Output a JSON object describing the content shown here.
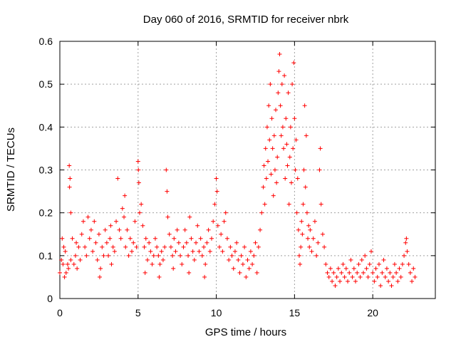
{
  "chart_data": {
    "type": "scatter",
    "title": "Day 060 of 2016, SRMTID for receiver nbrk",
    "xlabel": "GPS time / hours",
    "ylabel": "SRMTID / TECUs",
    "xlim": [
      0,
      24
    ],
    "ylim": [
      0,
      0.6
    ],
    "xticks": [
      0,
      5,
      10,
      15,
      20
    ],
    "xtick_labels": [
      "0",
      "5",
      "10",
      "15",
      "20"
    ],
    "yticks": [
      0,
      0.1,
      0.2,
      0.3,
      0.4,
      0.5,
      0.6
    ],
    "ytick_labels": [
      "0",
      "0.1",
      "0.2",
      "0.3",
      "0.4",
      "0.5",
      "0.6"
    ],
    "grid": true,
    "marker": "+",
    "color": "#ff0000",
    "series": [
      {
        "name": "SRMTID",
        "points": [
          [
            0.0,
            0.06
          ],
          [
            0.1,
            0.09
          ],
          [
            0.15,
            0.14
          ],
          [
            0.2,
            0.08
          ],
          [
            0.3,
            0.05
          ],
          [
            0.35,
            0.11
          ],
          [
            0.4,
            0.06
          ],
          [
            0.5,
            0.08
          ],
          [
            0.55,
            0.07
          ],
          [
            0.6,
            0.31
          ],
          [
            0.62,
            0.26
          ],
          [
            0.65,
            0.28
          ],
          [
            0.7,
            0.2
          ],
          [
            0.7,
            0.09
          ],
          [
            0.8,
            0.14
          ],
          [
            0.9,
            0.08
          ],
          [
            1.0,
            0.1
          ],
          [
            1.1,
            0.07
          ],
          [
            1.2,
            0.12
          ],
          [
            1.3,
            0.09
          ],
          [
            1.4,
            0.15
          ],
          [
            1.5,
            0.18
          ],
          [
            1.6,
            0.12
          ],
          [
            1.7,
            0.1
          ],
          [
            1.8,
            0.19
          ],
          [
            1.9,
            0.14
          ],
          [
            2.0,
            0.16
          ],
          [
            2.1,
            0.11
          ],
          [
            2.2,
            0.18
          ],
          [
            2.3,
            0.13
          ],
          [
            2.4,
            0.09
          ],
          [
            2.5,
            0.15
          ],
          [
            2.6,
            0.07
          ],
          [
            2.7,
            0.12
          ],
          [
            2.8,
            0.1
          ],
          [
            2.9,
            0.16
          ],
          [
            3.0,
            0.13
          ],
          [
            3.1,
            0.1
          ],
          [
            3.2,
            0.14
          ],
          [
            3.3,
            0.08
          ],
          [
            3.4,
            0.12
          ],
          [
            3.5,
            0.11
          ],
          [
            3.6,
            0.18
          ],
          [
            3.7,
            0.28
          ],
          [
            3.8,
            0.16
          ],
          [
            3.9,
            0.14
          ],
          [
            4.0,
            0.21
          ],
          [
            4.1,
            0.19
          ],
          [
            4.2,
            0.12
          ],
          [
            4.3,
            0.16
          ],
          [
            4.4,
            0.1
          ],
          [
            4.5,
            0.14
          ],
          [
            4.6,
            0.11
          ],
          [
            4.7,
            0.13
          ],
          [
            4.8,
            0.18
          ],
          [
            4.9,
            0.12
          ],
          [
            5.0,
            0.32
          ],
          [
            5.02,
            0.3
          ],
          [
            5.05,
            0.27
          ],
          [
            5.1,
            0.2
          ],
          [
            5.2,
            0.22
          ],
          [
            5.3,
            0.17
          ],
          [
            5.4,
            0.12
          ],
          [
            5.5,
            0.14
          ],
          [
            5.6,
            0.09
          ],
          [
            5.7,
            0.13
          ],
          [
            5.8,
            0.11
          ],
          [
            5.9,
            0.08
          ],
          [
            6.0,
            0.1
          ],
          [
            6.1,
            0.14
          ],
          [
            6.2,
            0.12
          ],
          [
            6.3,
            0.1
          ],
          [
            6.4,
            0.08
          ],
          [
            6.5,
            0.11
          ],
          [
            6.6,
            0.09
          ],
          [
            6.7,
            0.12
          ],
          [
            6.8,
            0.3
          ],
          [
            6.85,
            0.25
          ],
          [
            6.9,
            0.19
          ],
          [
            7.0,
            0.15
          ],
          [
            7.1,
            0.12
          ],
          [
            7.2,
            0.1
          ],
          [
            7.3,
            0.14
          ],
          [
            7.4,
            0.11
          ],
          [
            7.5,
            0.16
          ],
          [
            7.6,
            0.13
          ],
          [
            7.7,
            0.1
          ],
          [
            7.8,
            0.08
          ],
          [
            7.9,
            0.12
          ],
          [
            8.0,
            0.16
          ],
          [
            8.1,
            0.13
          ],
          [
            8.2,
            0.1
          ],
          [
            8.3,
            0.19
          ],
          [
            8.4,
            0.14
          ],
          [
            8.5,
            0.11
          ],
          [
            8.6,
            0.09
          ],
          [
            8.7,
            0.13
          ],
          [
            8.8,
            0.17
          ],
          [
            8.9,
            0.11
          ],
          [
            9.0,
            0.14
          ],
          [
            9.1,
            0.1
          ],
          [
            9.2,
            0.12
          ],
          [
            9.3,
            0.08
          ],
          [
            9.4,
            0.13
          ],
          [
            9.5,
            0.16
          ],
          [
            9.6,
            0.11
          ],
          [
            9.7,
            0.14
          ],
          [
            9.8,
            0.18
          ],
          [
            9.9,
            0.22
          ],
          [
            10.0,
            0.28
          ],
          [
            10.05,
            0.25
          ],
          [
            10.1,
            0.17
          ],
          [
            10.2,
            0.12
          ],
          [
            10.3,
            0.15
          ],
          [
            10.4,
            0.11
          ],
          [
            10.5,
            0.18
          ],
          [
            10.6,
            0.2
          ],
          [
            10.7,
            0.14
          ],
          [
            10.8,
            0.09
          ],
          [
            10.9,
            0.12
          ],
          [
            11.0,
            0.1
          ],
          [
            11.1,
            0.07
          ],
          [
            11.2,
            0.11
          ],
          [
            11.3,
            0.13
          ],
          [
            11.4,
            0.09
          ],
          [
            11.5,
            0.06
          ],
          [
            11.6,
            0.1
          ],
          [
            11.7,
            0.08
          ],
          [
            11.8,
            0.12
          ],
          [
            11.9,
            0.05
          ],
          [
            12.0,
            0.09
          ],
          [
            12.1,
            0.07
          ],
          [
            12.2,
            0.11
          ],
          [
            12.3,
            0.08
          ],
          [
            12.4,
            0.1
          ],
          [
            12.5,
            0.13
          ],
          [
            12.6,
            0.06
          ],
          [
            12.7,
            0.12
          ],
          [
            12.8,
            0.16
          ],
          [
            12.9,
            0.2
          ],
          [
            13.0,
            0.26
          ],
          [
            13.05,
            0.31
          ],
          [
            13.1,
            0.22
          ],
          [
            13.15,
            0.35
          ],
          [
            13.2,
            0.28
          ],
          [
            13.25,
            0.4
          ],
          [
            13.3,
            0.32
          ],
          [
            13.35,
            0.45
          ],
          [
            13.4,
            0.37
          ],
          [
            13.45,
            0.5
          ],
          [
            13.5,
            0.29
          ],
          [
            13.55,
            0.42
          ],
          [
            13.6,
            0.35
          ],
          [
            13.65,
            0.24
          ],
          [
            13.7,
            0.38
          ],
          [
            13.75,
            0.3
          ],
          [
            13.8,
            0.44
          ],
          [
            13.85,
            0.27
          ],
          [
            13.9,
            0.33
          ],
          [
            13.95,
            0.48
          ],
          [
            14.0,
            0.53
          ],
          [
            14.05,
            0.57
          ],
          [
            14.1,
            0.45
          ],
          [
            14.15,
            0.38
          ],
          [
            14.2,
            0.5
          ],
          [
            14.25,
            0.4
          ],
          [
            14.3,
            0.35
          ],
          [
            14.35,
            0.52
          ],
          [
            14.4,
            0.28
          ],
          [
            14.45,
            0.42
          ],
          [
            14.5,
            0.36
          ],
          [
            14.55,
            0.31
          ],
          [
            14.6,
            0.48
          ],
          [
            14.65,
            0.22
          ],
          [
            14.7,
            0.33
          ],
          [
            14.75,
            0.4
          ],
          [
            14.8,
            0.27
          ],
          [
            14.85,
            0.5
          ],
          [
            14.9,
            0.35
          ],
          [
            14.95,
            0.55
          ],
          [
            15.0,
            0.42
          ],
          [
            15.05,
            0.3
          ],
          [
            15.1,
            0.37
          ],
          [
            15.15,
            0.2
          ],
          [
            15.2,
            0.28
          ],
          [
            15.25,
            0.16
          ],
          [
            15.3,
            0.1
          ],
          [
            15.35,
            0.08
          ],
          [
            15.4,
            0.12
          ],
          [
            15.45,
            0.18
          ],
          [
            15.5,
            0.15
          ],
          [
            15.55,
            0.22
          ],
          [
            15.6,
            0.3
          ],
          [
            15.65,
            0.45
          ],
          [
            15.7,
            0.26
          ],
          [
            15.75,
            0.38
          ],
          [
            15.8,
            0.2
          ],
          [
            15.85,
            0.14
          ],
          [
            15.9,
            0.17
          ],
          [
            15.95,
            0.12
          ],
          [
            16.0,
            0.16
          ],
          [
            16.1,
            0.11
          ],
          [
            16.2,
            0.14
          ],
          [
            16.3,
            0.18
          ],
          [
            16.4,
            0.1
          ],
          [
            16.5,
            0.13
          ],
          [
            16.6,
            0.3
          ],
          [
            16.65,
            0.35
          ],
          [
            16.7,
            0.22
          ],
          [
            16.8,
            0.15
          ],
          [
            16.9,
            0.12
          ],
          [
            17.0,
            0.08
          ],
          [
            17.1,
            0.06
          ],
          [
            17.2,
            0.05
          ],
          [
            17.3,
            0.07
          ],
          [
            17.4,
            0.04
          ],
          [
            17.5,
            0.06
          ],
          [
            17.6,
            0.03
          ],
          [
            17.7,
            0.05
          ],
          [
            17.8,
            0.07
          ],
          [
            17.9,
            0.04
          ],
          [
            18.0,
            0.06
          ],
          [
            18.1,
            0.08
          ],
          [
            18.2,
            0.05
          ],
          [
            18.3,
            0.07
          ],
          [
            18.4,
            0.04
          ],
          [
            18.5,
            0.06
          ],
          [
            18.6,
            0.09
          ],
          [
            18.7,
            0.05
          ],
          [
            18.8,
            0.07
          ],
          [
            18.9,
            0.04
          ],
          [
            19.0,
            0.06
          ],
          [
            19.1,
            0.08
          ],
          [
            19.2,
            0.05
          ],
          [
            19.3,
            0.09
          ],
          [
            19.4,
            0.06
          ],
          [
            19.5,
            0.1
          ],
          [
            19.6,
            0.07
          ],
          [
            19.7,
            0.05
          ],
          [
            19.8,
            0.08
          ],
          [
            19.9,
            0.11
          ],
          [
            20.0,
            0.06
          ],
          [
            20.1,
            0.04
          ],
          [
            20.2,
            0.07
          ],
          [
            20.3,
            0.05
          ],
          [
            20.4,
            0.08
          ],
          [
            20.5,
            0.03
          ],
          [
            20.6,
            0.06
          ],
          [
            20.7,
            0.09
          ],
          [
            20.8,
            0.05
          ],
          [
            20.9,
            0.07
          ],
          [
            21.0,
            0.04
          ],
          [
            21.1,
            0.06
          ],
          [
            21.2,
            0.03
          ],
          [
            21.3,
            0.05
          ],
          [
            21.4,
            0.08
          ],
          [
            21.5,
            0.06
          ],
          [
            21.6,
            0.04
          ],
          [
            21.7,
            0.07
          ],
          [
            21.8,
            0.05
          ],
          [
            21.9,
            0.08
          ],
          [
            22.0,
            0.1
          ],
          [
            22.1,
            0.13
          ],
          [
            22.15,
            0.14
          ],
          [
            22.2,
            0.11
          ],
          [
            22.3,
            0.08
          ],
          [
            22.4,
            0.06
          ],
          [
            22.5,
            0.04
          ],
          [
            22.6,
            0.07
          ],
          [
            22.7,
            0.05
          ],
          [
            0.25,
            0.12
          ],
          [
            1.05,
            0.13
          ],
          [
            2.55,
            0.05
          ],
          [
            3.25,
            0.17
          ],
          [
            4.15,
            0.24
          ],
          [
            5.45,
            0.06
          ],
          [
            6.35,
            0.05
          ],
          [
            7.25,
            0.07
          ],
          [
            8.25,
            0.06
          ],
          [
            9.25,
            0.05
          ]
        ]
      }
    ]
  }
}
